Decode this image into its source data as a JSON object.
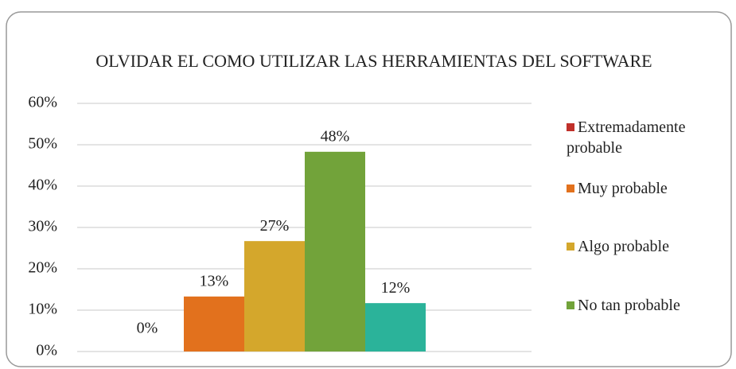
{
  "chart_data": {
    "type": "bar",
    "title": "OLVIDAR EL COMO UTILIZAR LAS HERRAMIENTAS DEL SOFTWARE",
    "categories": [
      null
    ],
    "series": [
      {
        "name": "Extremadamente probable",
        "color": "#c0302a",
        "values": [
          0
        ],
        "value_labels": [
          "0%"
        ]
      },
      {
        "name": "Muy probable",
        "color": "#e2711d",
        "values": [
          13.3
        ],
        "value_labels": [
          "13%"
        ]
      },
      {
        "name": "Algo probable",
        "color": "#d4a72c",
        "values": [
          26.7
        ],
        "value_labels": [
          "27%"
        ]
      },
      {
        "name": "No tan probable",
        "color": "#72a33a",
        "values": [
          48.3
        ],
        "value_labels": [
          "48%"
        ]
      },
      {
        "color": "#2bb39a",
        "values": [
          11.7
        ],
        "value_labels": [
          "12%"
        ]
      }
    ],
    "ylim": [
      0,
      60
    ],
    "yticks": [
      {
        "value": 0,
        "label": "0%"
      },
      {
        "value": 10,
        "label": "10%"
      },
      {
        "value": 20,
        "label": "20%"
      },
      {
        "value": 30,
        "label": "30%"
      },
      {
        "value": 40,
        "label": "40%"
      },
      {
        "value": 50,
        "label": "50%"
      },
      {
        "value": 60,
        "label": "60%"
      }
    ],
    "grid": true,
    "legend": "right"
  }
}
